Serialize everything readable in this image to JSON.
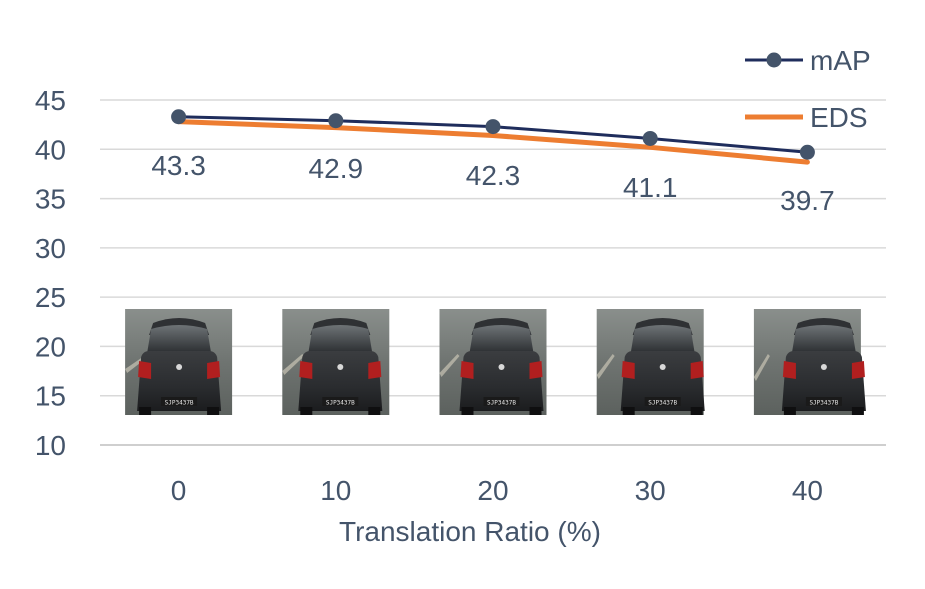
{
  "chart_data": {
    "type": "line",
    "title": "",
    "xlabel": "Translation Ratio (%)",
    "ylabel": "",
    "categories": [
      "0",
      "10",
      "20",
      "30",
      "40"
    ],
    "ylim": [
      10,
      45
    ],
    "yticks": [
      10,
      15,
      20,
      25,
      30,
      35,
      40,
      45
    ],
    "grid": true,
    "legend_position": "top-right",
    "series": [
      {
        "name": "mAP",
        "values": [
          43.3,
          42.9,
          42.3,
          41.1,
          39.7
        ],
        "data_labels": [
          "43.3",
          "42.9",
          "42.3",
          "41.1",
          "39.7"
        ],
        "color": "#1f2d5c",
        "marker": "circle"
      },
      {
        "name": "EDS",
        "values": [
          42.8,
          42.2,
          41.4,
          40.2,
          38.7
        ],
        "color": "#ed7d31",
        "marker": "none"
      }
    ],
    "thumbnails": [
      {
        "category": "0",
        "plate_text": "SJP3437B"
      },
      {
        "category": "10",
        "plate_text": "SJP3437B"
      },
      {
        "category": "20",
        "plate_text": "SJP3437B"
      },
      {
        "category": "30",
        "plate_text": "SJP3437B"
      },
      {
        "category": "40",
        "plate_text": "SJP3437B"
      }
    ],
    "colors": {
      "text": "#44546a",
      "grid": "#d9d9d9",
      "axis": "#bfbfbf"
    }
  }
}
